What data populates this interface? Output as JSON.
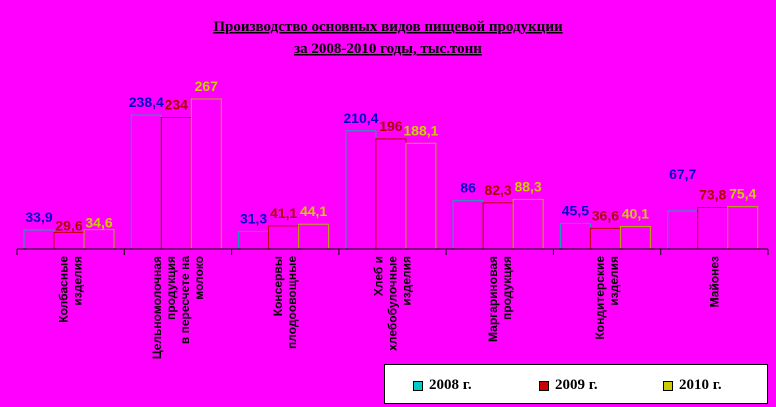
{
  "chart_data": {
    "type": "bar",
    "title": [
      "Производство основных видов пищевой продукции",
      "за 2008-2010 годы, тыс.тонн"
    ],
    "categories": [
      [
        "Колбасные",
        "изделия"
      ],
      [
        "Цельномолочная",
        "продукция",
        "в пересчете на",
        "молоко"
      ],
      [
        "Консервы",
        "плодоовощные"
      ],
      [
        "Хлеб и",
        "хлебобулочные",
        "изделия"
      ],
      [
        "Маргариновая",
        "продукция"
      ],
      [
        "Кондитерские",
        "изделия"
      ],
      [
        "Майонез"
      ]
    ],
    "series": [
      {
        "name": "2008 г.",
        "values": [
          33.9,
          238.4,
          31.3,
          210.4,
          86,
          45.5,
          67.7
        ],
        "labels": [
          "33,9",
          "238,4",
          "31,3",
          "210,4",
          "86",
          "45,5",
          "67,7"
        ]
      },
      {
        "name": "2009 г.",
        "values": [
          29.6,
          234,
          41.1,
          196,
          82.3,
          36.6,
          73.8
        ],
        "labels": [
          "29,6",
          "234",
          "41,1",
          "196",
          "82,3",
          "36,6",
          "73,8"
        ]
      },
      {
        "name": "2010 г.",
        "values": [
          34.6,
          267,
          44.1,
          188.1,
          88.3,
          40.1,
          75.4
        ],
        "labels": [
          "34,6",
          "267",
          "44,1",
          "188,1",
          "88,3",
          "40,1",
          "75,4"
        ]
      }
    ],
    "ylim": [
      0,
      267
    ],
    "grid": false,
    "legend_position": "bottom-right",
    "colors": {
      "background": "#ff00ff",
      "bar_fill": "#ff00ff",
      "bar_stroke": [
        "#00b0b0",
        "#c00000",
        "#b0b000"
      ],
      "label_color": [
        "#0000cc",
        "#aa0000",
        "#cccc00"
      ],
      "legend_swatch": [
        "#00cccc",
        "#cc0000",
        "#cccc00"
      ],
      "axis": "#000000"
    }
  }
}
